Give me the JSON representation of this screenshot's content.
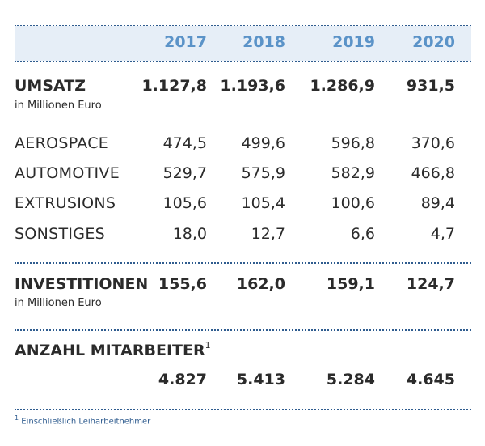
{
  "years": [
    "2017",
    "2018",
    "2019",
    "2020"
  ],
  "umsatz": {
    "label": "UMSATZ",
    "sub": "in Millionen Euro",
    "values": [
      "1.127,8",
      "1.193,6",
      "1.286,9",
      "931,5"
    ]
  },
  "segments": [
    {
      "label": "AEROSPACE",
      "values": [
        "474,5",
        "499,6",
        "596,8",
        "370,6"
      ]
    },
    {
      "label": "AUTOMOTIVE",
      "values": [
        "529,7",
        "575,9",
        "582,9",
        "466,8"
      ]
    },
    {
      "label": "EXTRUSIONS",
      "values": [
        "105,6",
        "105,4",
        "100,6",
        "89,4"
      ]
    },
    {
      "label": "SONSTIGES",
      "values": [
        "18,0",
        "12,7",
        "6,6",
        "4,7"
      ]
    }
  ],
  "investitionen": {
    "label": "INVESTITIONEN",
    "sub": "in Millionen Euro",
    "values": [
      "155,6",
      "162,0",
      "159,1",
      "124,7"
    ]
  },
  "mitarbeiter": {
    "label": "ANZAHL MITARBEITER",
    "footnote_mark": "1",
    "values": [
      "4.827",
      "5.413",
      "5.284",
      "4.645"
    ]
  },
  "footnote": {
    "mark": "1",
    "text": "Einschließlich Leiharbeitnehmer"
  }
}
